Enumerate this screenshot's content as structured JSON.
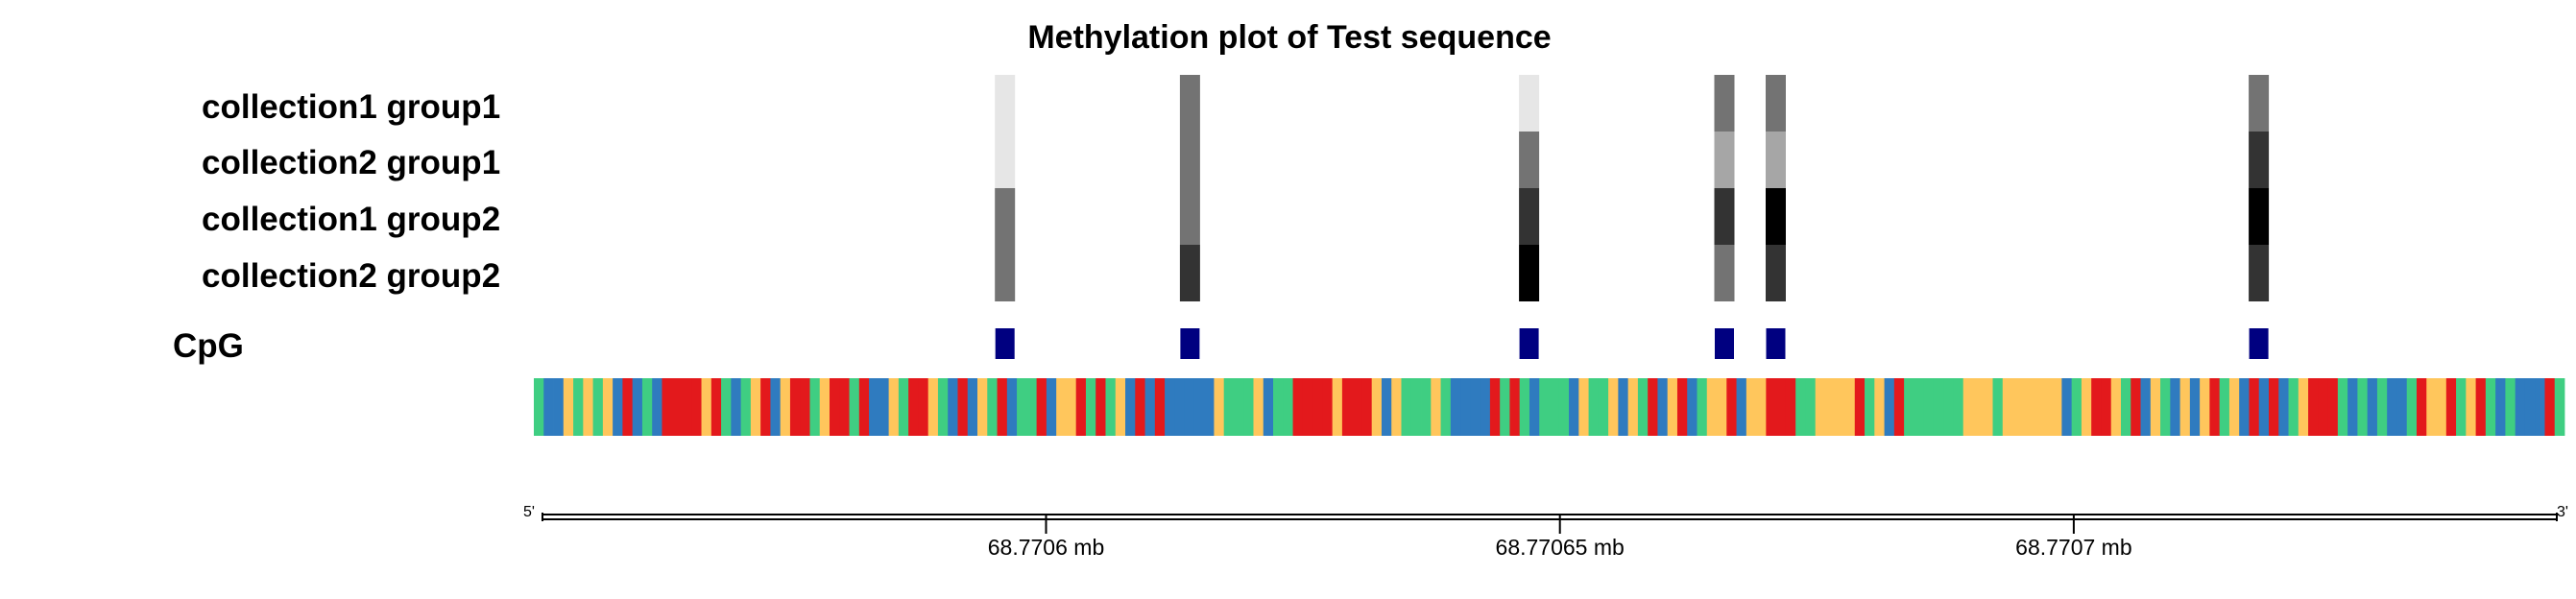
{
  "chart_data": {
    "type": "heatmap",
    "title": "Methylation plot of Test sequence",
    "rows": [
      "collection1 group1",
      "collection2 group1",
      "collection1 group2",
      "collection2 group2"
    ],
    "cpg_label": "CpG",
    "cpg_positions": [
      68.770596,
      68.770614,
      68.770647,
      68.770666,
      68.770671,
      68.770718
    ],
    "methylation": [
      [
        0.1,
        0.55,
        0.1,
        0.55,
        0.55,
        0.55
      ],
      [
        0.1,
        0.55,
        0.55,
        0.35,
        0.35,
        0.8
      ],
      [
        0.55,
        0.55,
        0.8,
        0.8,
        1.0,
        1.0
      ],
      [
        0.55,
        0.8,
        1.0,
        0.55,
        0.8,
        0.8
      ]
    ],
    "sequence": "ACCGAGAGCTCACTTTTGTACAGTCGTTAGTTATCCGATTGACTCGATCAATCGGTATAGCTCTCCCCCGAAAGCAATTTTGTTTGCGAAAGACCCCTATACAAACGAAGCGATCGTCAGGTCGGTTTAAGGGGTAGCTAAAAAAGGGAGGGGGGCAGTTGATCGACGCGTAGCTCTCAGTTTACACACCATGGTAGTACACCCTA",
    "base_colors": {
      "A": "#3fce82",
      "C": "#2f7bbf",
      "G": "#ffc65c",
      "T": "#e3191c"
    },
    "heat_scale": [
      "#ffffff",
      "#000000"
    ],
    "cpg_color": "#000080",
    "xaxis": {
      "start_label": "5'",
      "end_label": "3'",
      "range_mb": [
        68.770551,
        68.770747
      ],
      "ticks": [
        {
          "value": 68.7706,
          "label": "68.7706 mb"
        },
        {
          "value": 68.77065,
          "label": "68.77065 mb"
        },
        {
          "value": 68.7707,
          "label": "68.7707 mb"
        }
      ]
    }
  }
}
